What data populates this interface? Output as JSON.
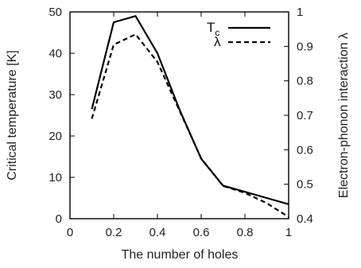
{
  "chart_data": {
    "type": "line",
    "x": [
      0.1,
      0.2,
      0.3,
      0.4,
      0.5,
      0.6,
      0.7,
      0.8,
      0.9,
      1.0
    ],
    "xlabel": "The number of holes",
    "ylabel_left": "Critical temperature [K]",
    "ylabel_right": "Electron-phonon interaction λ",
    "xlim": [
      0,
      1
    ],
    "ylim_left": [
      0,
      50
    ],
    "ylim_right": [
      0.4,
      1.0
    ],
    "x_ticks": [
      "0",
      "0.2",
      "0.4",
      "0.6",
      "0.8",
      "1"
    ],
    "x_tick_values": [
      0,
      0.2,
      0.4,
      0.6,
      0.8,
      1.0
    ],
    "y_left_ticks": [
      "0",
      "10",
      "20",
      "30",
      "40",
      "50"
    ],
    "y_left_tick_values": [
      0,
      10,
      20,
      30,
      40,
      50
    ],
    "y_right_ticks": [
      "0.4",
      "0.5",
      "0.6",
      "0.7",
      "0.8",
      "0.9",
      "1"
    ],
    "y_right_tick_values": [
      0.4,
      0.5,
      0.6,
      0.7,
      0.8,
      0.9,
      1.0
    ],
    "grid": false,
    "legend_position": "top-right",
    "series": [
      {
        "name": "T",
        "name_subscript": "c",
        "axis": "left",
        "style": "solid",
        "color": "#000000",
        "values": [
          26.5,
          47.5,
          49.0,
          40.0,
          26.5,
          14.5,
          8.0,
          6.5,
          5.0,
          3.5
        ]
      },
      {
        "name": "λ",
        "axis": "right",
        "style": "dashed",
        "color": "#000000",
        "values": [
          0.69,
          0.905,
          0.935,
          0.855,
          0.715,
          0.575,
          0.495,
          0.475,
          0.445,
          0.405
        ]
      }
    ]
  }
}
